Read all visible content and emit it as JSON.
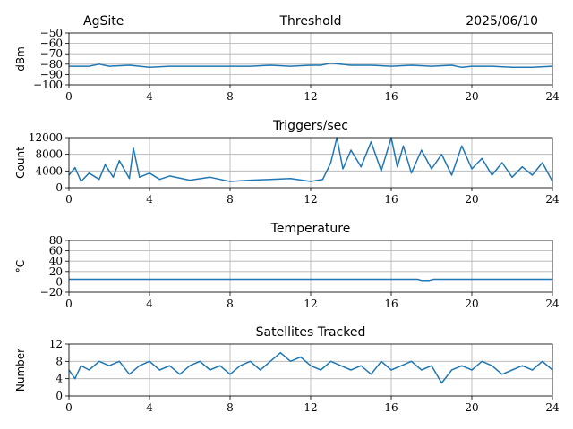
{
  "header": {
    "site": "AgSite",
    "date": "2025/06/10"
  },
  "chart_data": [
    {
      "type": "line",
      "title": "Threshold",
      "ylabel": "dBm",
      "xlim": [
        0,
        24
      ],
      "ylim": [
        -100,
        -50
      ],
      "xticks": [
        0,
        4,
        8,
        12,
        16,
        20,
        24
      ],
      "yticks": [
        -100,
        -90,
        -80,
        -70,
        -60,
        -50
      ],
      "ytick_labels": [
        "−100",
        "−90",
        "−80",
        "−70",
        "−60",
        "−50"
      ],
      "grid": true,
      "color": "#1f77b4",
      "x": [
        0,
        1,
        1.5,
        2,
        3,
        4,
        5,
        6,
        7,
        8,
        9,
        10,
        11,
        12,
        12.5,
        13,
        14,
        15,
        16,
        17,
        18,
        19,
        19.5,
        20,
        21,
        22,
        23,
        24
      ],
      "y": [
        -82,
        -82,
        -80,
        -82,
        -81,
        -83,
        -82,
        -82,
        -82,
        -82,
        -82,
        -81,
        -82,
        -81,
        -81,
        -79,
        -81,
        -81,
        -82,
        -81,
        -82,
        -81,
        -83,
        -82,
        -82,
        -83,
        -83,
        -82
      ]
    },
    {
      "type": "line",
      "title": "Triggers/sec",
      "ylabel": "Count",
      "xlim": [
        0,
        24
      ],
      "ylim": [
        0,
        12000
      ],
      "xticks": [
        0,
        4,
        8,
        12,
        16,
        20,
        24
      ],
      "yticks": [
        0,
        4000,
        8000,
        12000
      ],
      "ytick_labels": [
        "0",
        "4000",
        "8000",
        "12000"
      ],
      "grid": true,
      "color": "#1f77b4",
      "x": [
        0,
        0.3,
        0.6,
        1,
        1.5,
        1.8,
        2.2,
        2.5,
        3,
        3.2,
        3.5,
        4,
        4.5,
        5,
        6,
        7,
        8,
        9,
        10,
        11,
        12,
        12.6,
        13,
        13.3,
        13.6,
        14,
        14.5,
        15,
        15.5,
        16,
        16.3,
        16.6,
        17,
        17.5,
        18,
        18.5,
        19,
        19.5,
        20,
        20.5,
        21,
        21.5,
        22,
        22.5,
        23,
        23.5,
        24
      ],
      "y": [
        3000,
        4800,
        1500,
        3500,
        2000,
        5500,
        2500,
        6500,
        2200,
        9500,
        2500,
        3500,
        2000,
        2800,
        1800,
        2500,
        1500,
        1800,
        2000,
        2200,
        1500,
        2000,
        6000,
        12000,
        4500,
        9000,
        5000,
        11000,
        4000,
        12000,
        5000,
        10000,
        3500,
        9000,
        4500,
        8000,
        3000,
        10000,
        4500,
        7000,
        3000,
        6000,
        2500,
        5000,
        3000,
        6000,
        1500
      ]
    },
    {
      "type": "line",
      "title": "Temperature",
      "ylabel": "°C",
      "xlim": [
        0,
        24
      ],
      "ylim": [
        -20,
        80
      ],
      "xticks": [
        0,
        4,
        8,
        12,
        16,
        20,
        24
      ],
      "yticks": [
        -20,
        0,
        20,
        40,
        60,
        80
      ],
      "ytick_labels": [
        "−20",
        "0",
        "20",
        "40",
        "60",
        "80"
      ],
      "grid": true,
      "color": "#1f77b4",
      "x": [
        0,
        17.3,
        17.5,
        17.9,
        18.1,
        24
      ],
      "y": [
        5,
        5,
        3,
        3,
        5,
        5
      ]
    },
    {
      "type": "line",
      "title": "Satellites Tracked",
      "ylabel": "Number",
      "xlim": [
        0,
        24
      ],
      "ylim": [
        0,
        12
      ],
      "xticks": [
        0,
        4,
        8,
        12,
        16,
        20,
        24
      ],
      "yticks": [
        0,
        4,
        8,
        12
      ],
      "ytick_labels": [
        "0",
        "4",
        "8",
        "12"
      ],
      "grid": true,
      "color": "#1f77b4",
      "x": [
        0,
        0.3,
        0.6,
        1,
        1.5,
        2,
        2.5,
        3,
        3.5,
        4,
        4.5,
        5,
        5.5,
        6,
        6.5,
        7,
        7.5,
        8,
        8.5,
        9,
        9.5,
        10,
        10.5,
        11,
        11.5,
        12,
        12.5,
        13,
        13.5,
        14,
        14.5,
        15,
        15.5,
        16,
        16.5,
        17,
        17.5,
        18,
        18.5,
        19,
        19.5,
        20,
        20.5,
        21,
        21.5,
        22,
        22.5,
        23,
        23.5,
        24
      ],
      "y": [
        6,
        4,
        7,
        6,
        8,
        7,
        8,
        5,
        7,
        8,
        6,
        7,
        5,
        7,
        8,
        6,
        7,
        5,
        7,
        8,
        6,
        8,
        10,
        8,
        9,
        7,
        6,
        8,
        7,
        6,
        7,
        5,
        8,
        6,
        7,
        8,
        6,
        7,
        3,
        6,
        7,
        6,
        8,
        7,
        5,
        6,
        7,
        6,
        8,
        6
      ]
    }
  ]
}
